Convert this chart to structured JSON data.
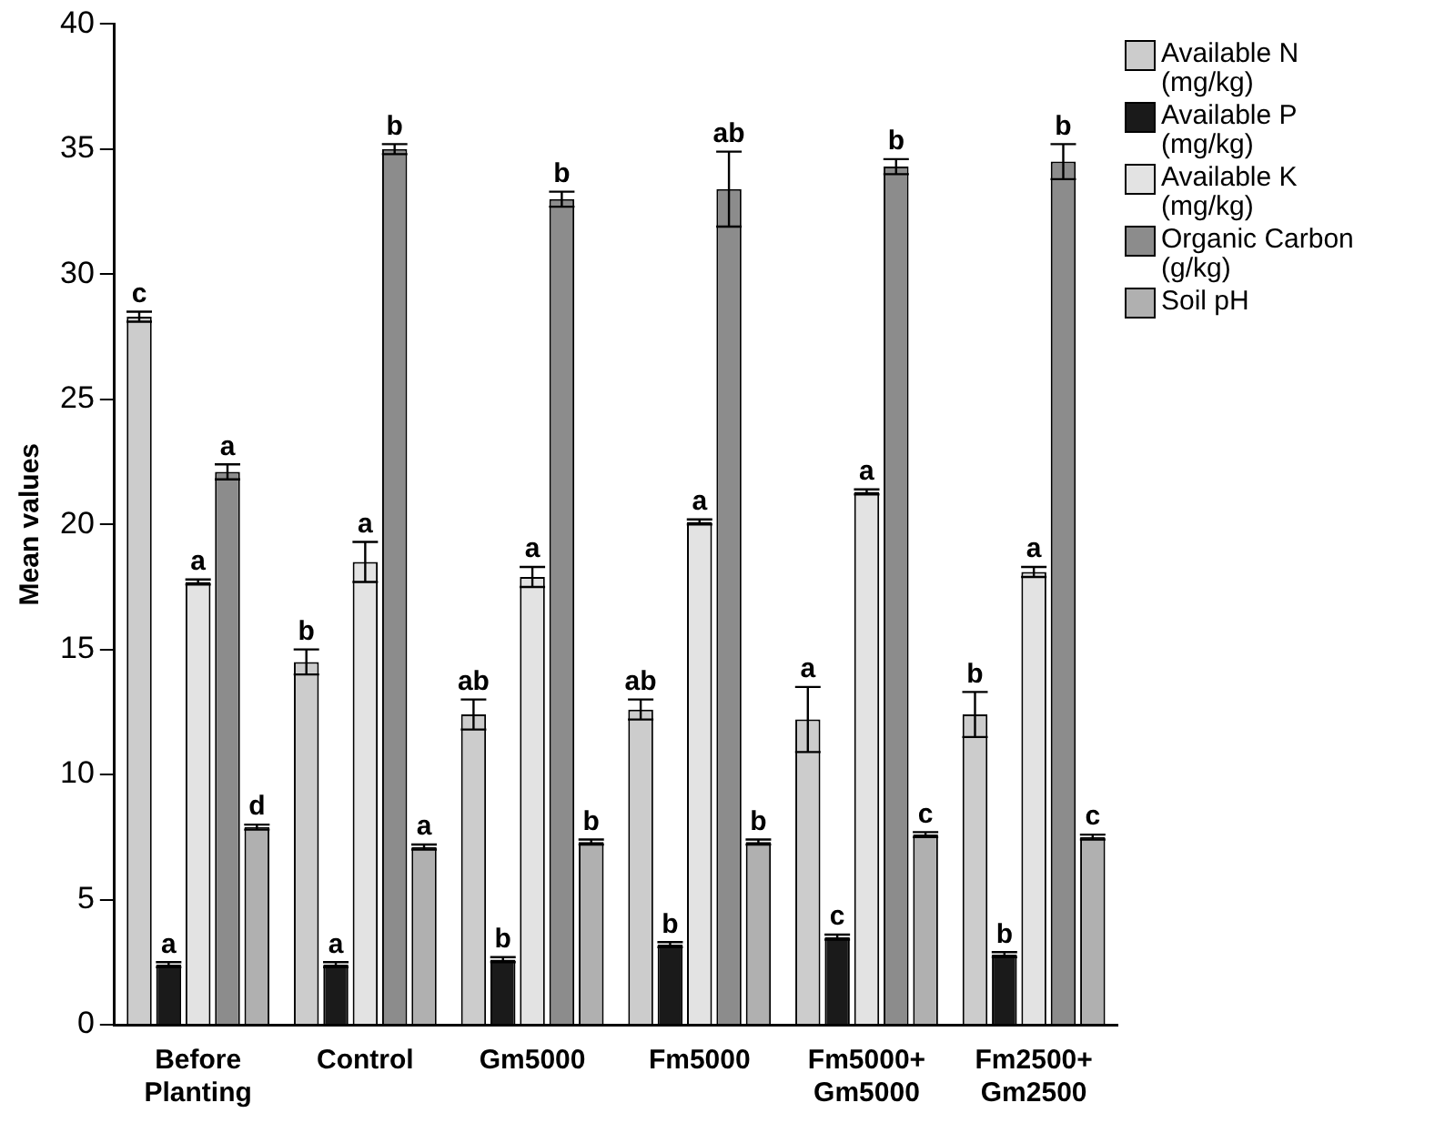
{
  "chart_data": {
    "type": "bar",
    "ylabel": "Mean values",
    "categories": [
      "Before Planting",
      "Control",
      "Gm5000",
      "Fm5000",
      "Fm5000+ Gm5000",
      "Fm2500+ Gm2500"
    ],
    "series": [
      {
        "name": "Available N (mg/kg)",
        "color": "#cccccc",
        "values": [
          28.3,
          14.5,
          12.4,
          12.6,
          12.2,
          12.4
        ],
        "errors": [
          0.2,
          0.5,
          0.6,
          0.4,
          1.3,
          0.9
        ],
        "value_labels": [
          "c",
          "b",
          "ab",
          "ab",
          "a",
          "b"
        ]
      },
      {
        "name": "Available P (mg/kg)",
        "color": "#1a1a1a",
        "values": [
          2.4,
          2.4,
          2.6,
          3.2,
          3.5,
          2.8
        ],
        "errors": [
          0.1,
          0.1,
          0.1,
          0.1,
          0.1,
          0.1
        ],
        "value_labels": [
          "a",
          "a",
          "b",
          "b",
          "c",
          "b"
        ]
      },
      {
        "name": "Available K (mg/kg)",
        "color": "#e3e3e3",
        "values": [
          17.7,
          18.5,
          17.9,
          20.1,
          21.3,
          18.1
        ],
        "errors": [
          0.1,
          0.8,
          0.4,
          0.1,
          0.1,
          0.2
        ],
        "value_labels": [
          "a",
          "a",
          "a",
          "a",
          "a",
          "a"
        ]
      },
      {
        "name": "Organic Carbon (g/kg)",
        "color": "#8c8c8c",
        "values": [
          22.1,
          35.0,
          33.0,
          33.4,
          34.3,
          34.5
        ],
        "errors": [
          0.3,
          0.2,
          0.3,
          1.5,
          0.3,
          0.7
        ],
        "value_labels": [
          "a",
          "b",
          "b",
          "ab",
          "b",
          "b"
        ]
      },
      {
        "name": "Soil pH",
        "color": "#b0b0b0",
        "values": [
          7.9,
          7.1,
          7.3,
          7.3,
          7.6,
          7.5
        ],
        "errors": [
          0.1,
          0.1,
          0.1,
          0.1,
          0.1,
          0.1
        ],
        "value_labels": [
          "d",
          "a",
          "b",
          "b",
          "c",
          "c"
        ]
      }
    ],
    "ylim": [
      0,
      40
    ],
    "yticks": [
      0,
      5,
      10,
      15,
      20,
      25,
      30,
      35,
      40
    ],
    "grid": false,
    "legend": "top right"
  }
}
